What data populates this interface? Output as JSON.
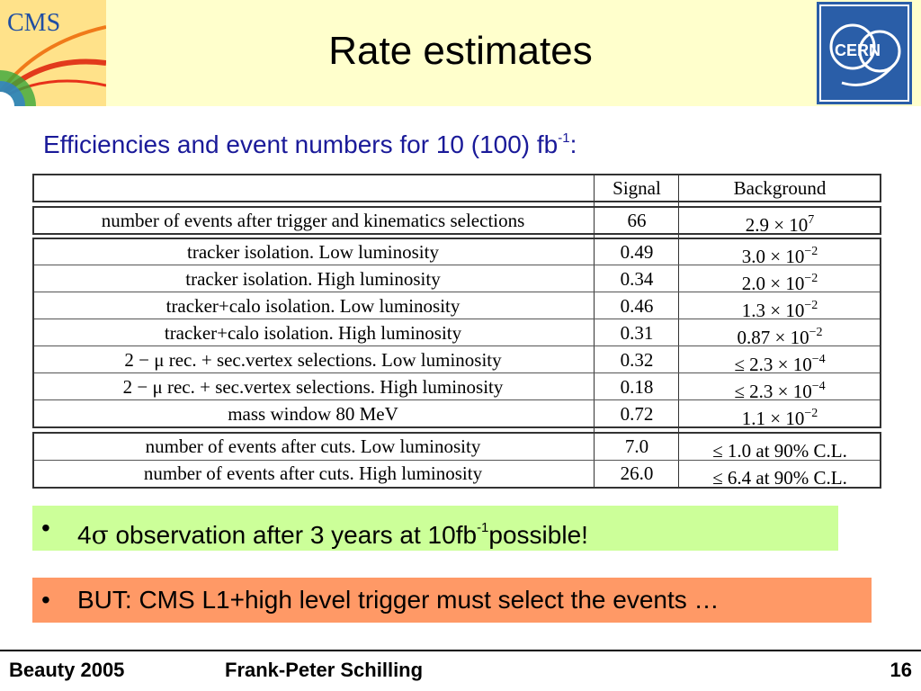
{
  "header": {
    "title": "Rate estimates",
    "cms_logo_text": "CMS",
    "cern_logo_text": "CERN"
  },
  "subtitle": {
    "text": "Efficiencies and event numbers for 10 (100) fb",
    "sup": "-1",
    "suffix": ":"
  },
  "table": {
    "headers": [
      "",
      "Signal",
      "Background"
    ],
    "rows": [
      {
        "label": "number of events after trigger and kinematics selections",
        "signal": "66",
        "bg_base": "2.9 × 10",
        "bg_sup": "7",
        "bg_suffix": ""
      },
      {
        "label": "tracker isolation. Low luminosity",
        "signal": "0.49",
        "bg_base": "3.0 × 10",
        "bg_sup": "−2",
        "bg_suffix": ""
      },
      {
        "label": "tracker isolation. High luminosity",
        "signal": "0.34",
        "bg_base": "2.0 × 10",
        "bg_sup": "−2",
        "bg_suffix": ""
      },
      {
        "label": "tracker+calo isolation. Low luminosity",
        "signal": "0.46",
        "bg_base": "1.3 × 10",
        "bg_sup": "−2",
        "bg_suffix": ""
      },
      {
        "label": "tracker+calo isolation. High luminosity",
        "signal": "0.31",
        "bg_base": "0.87 × 10",
        "bg_sup": "−2",
        "bg_suffix": ""
      },
      {
        "label": "2 − μ rec. + sec.vertex selections. Low luminosity",
        "signal": "0.32",
        "bg_base": "≤ 2.3 × 10",
        "bg_sup": "−4",
        "bg_suffix": ""
      },
      {
        "label": "2 − μ rec. + sec.vertex selections. High luminosity",
        "signal": "0.18",
        "bg_base": "≤ 2.3 × 10",
        "bg_sup": "−4",
        "bg_suffix": ""
      },
      {
        "label": "mass window 80 MeV",
        "signal": "0.72",
        "bg_base": "1.1 × 10",
        "bg_sup": "−2",
        "bg_suffix": ""
      },
      {
        "label": "number of events after cuts. Low luminosity",
        "signal": "7.0",
        "bg_base": "≤ 1.0 at 90% C.L.",
        "bg_sup": "",
        "bg_suffix": ""
      },
      {
        "label": "number of events after cuts. High luminosity",
        "signal": "26.0",
        "bg_base": "≤ 6.4 at 90% C.L.",
        "bg_sup": "",
        "bg_suffix": ""
      }
    ]
  },
  "callouts": {
    "first": {
      "bullet": "•",
      "prefix": "4",
      "sigma": "σ",
      "text": " observation after 3 years at 10fb",
      "sup": "-1",
      "suffix": "possible!",
      "color": "#ccff99"
    },
    "second": {
      "bullet": "•",
      "text": "BUT: CMS L1+high level trigger must select the events …",
      "color": "#ff9966"
    }
  },
  "footer": {
    "left": "Beauty 2005",
    "center": "Frank-Peter Schilling",
    "page": "16"
  }
}
